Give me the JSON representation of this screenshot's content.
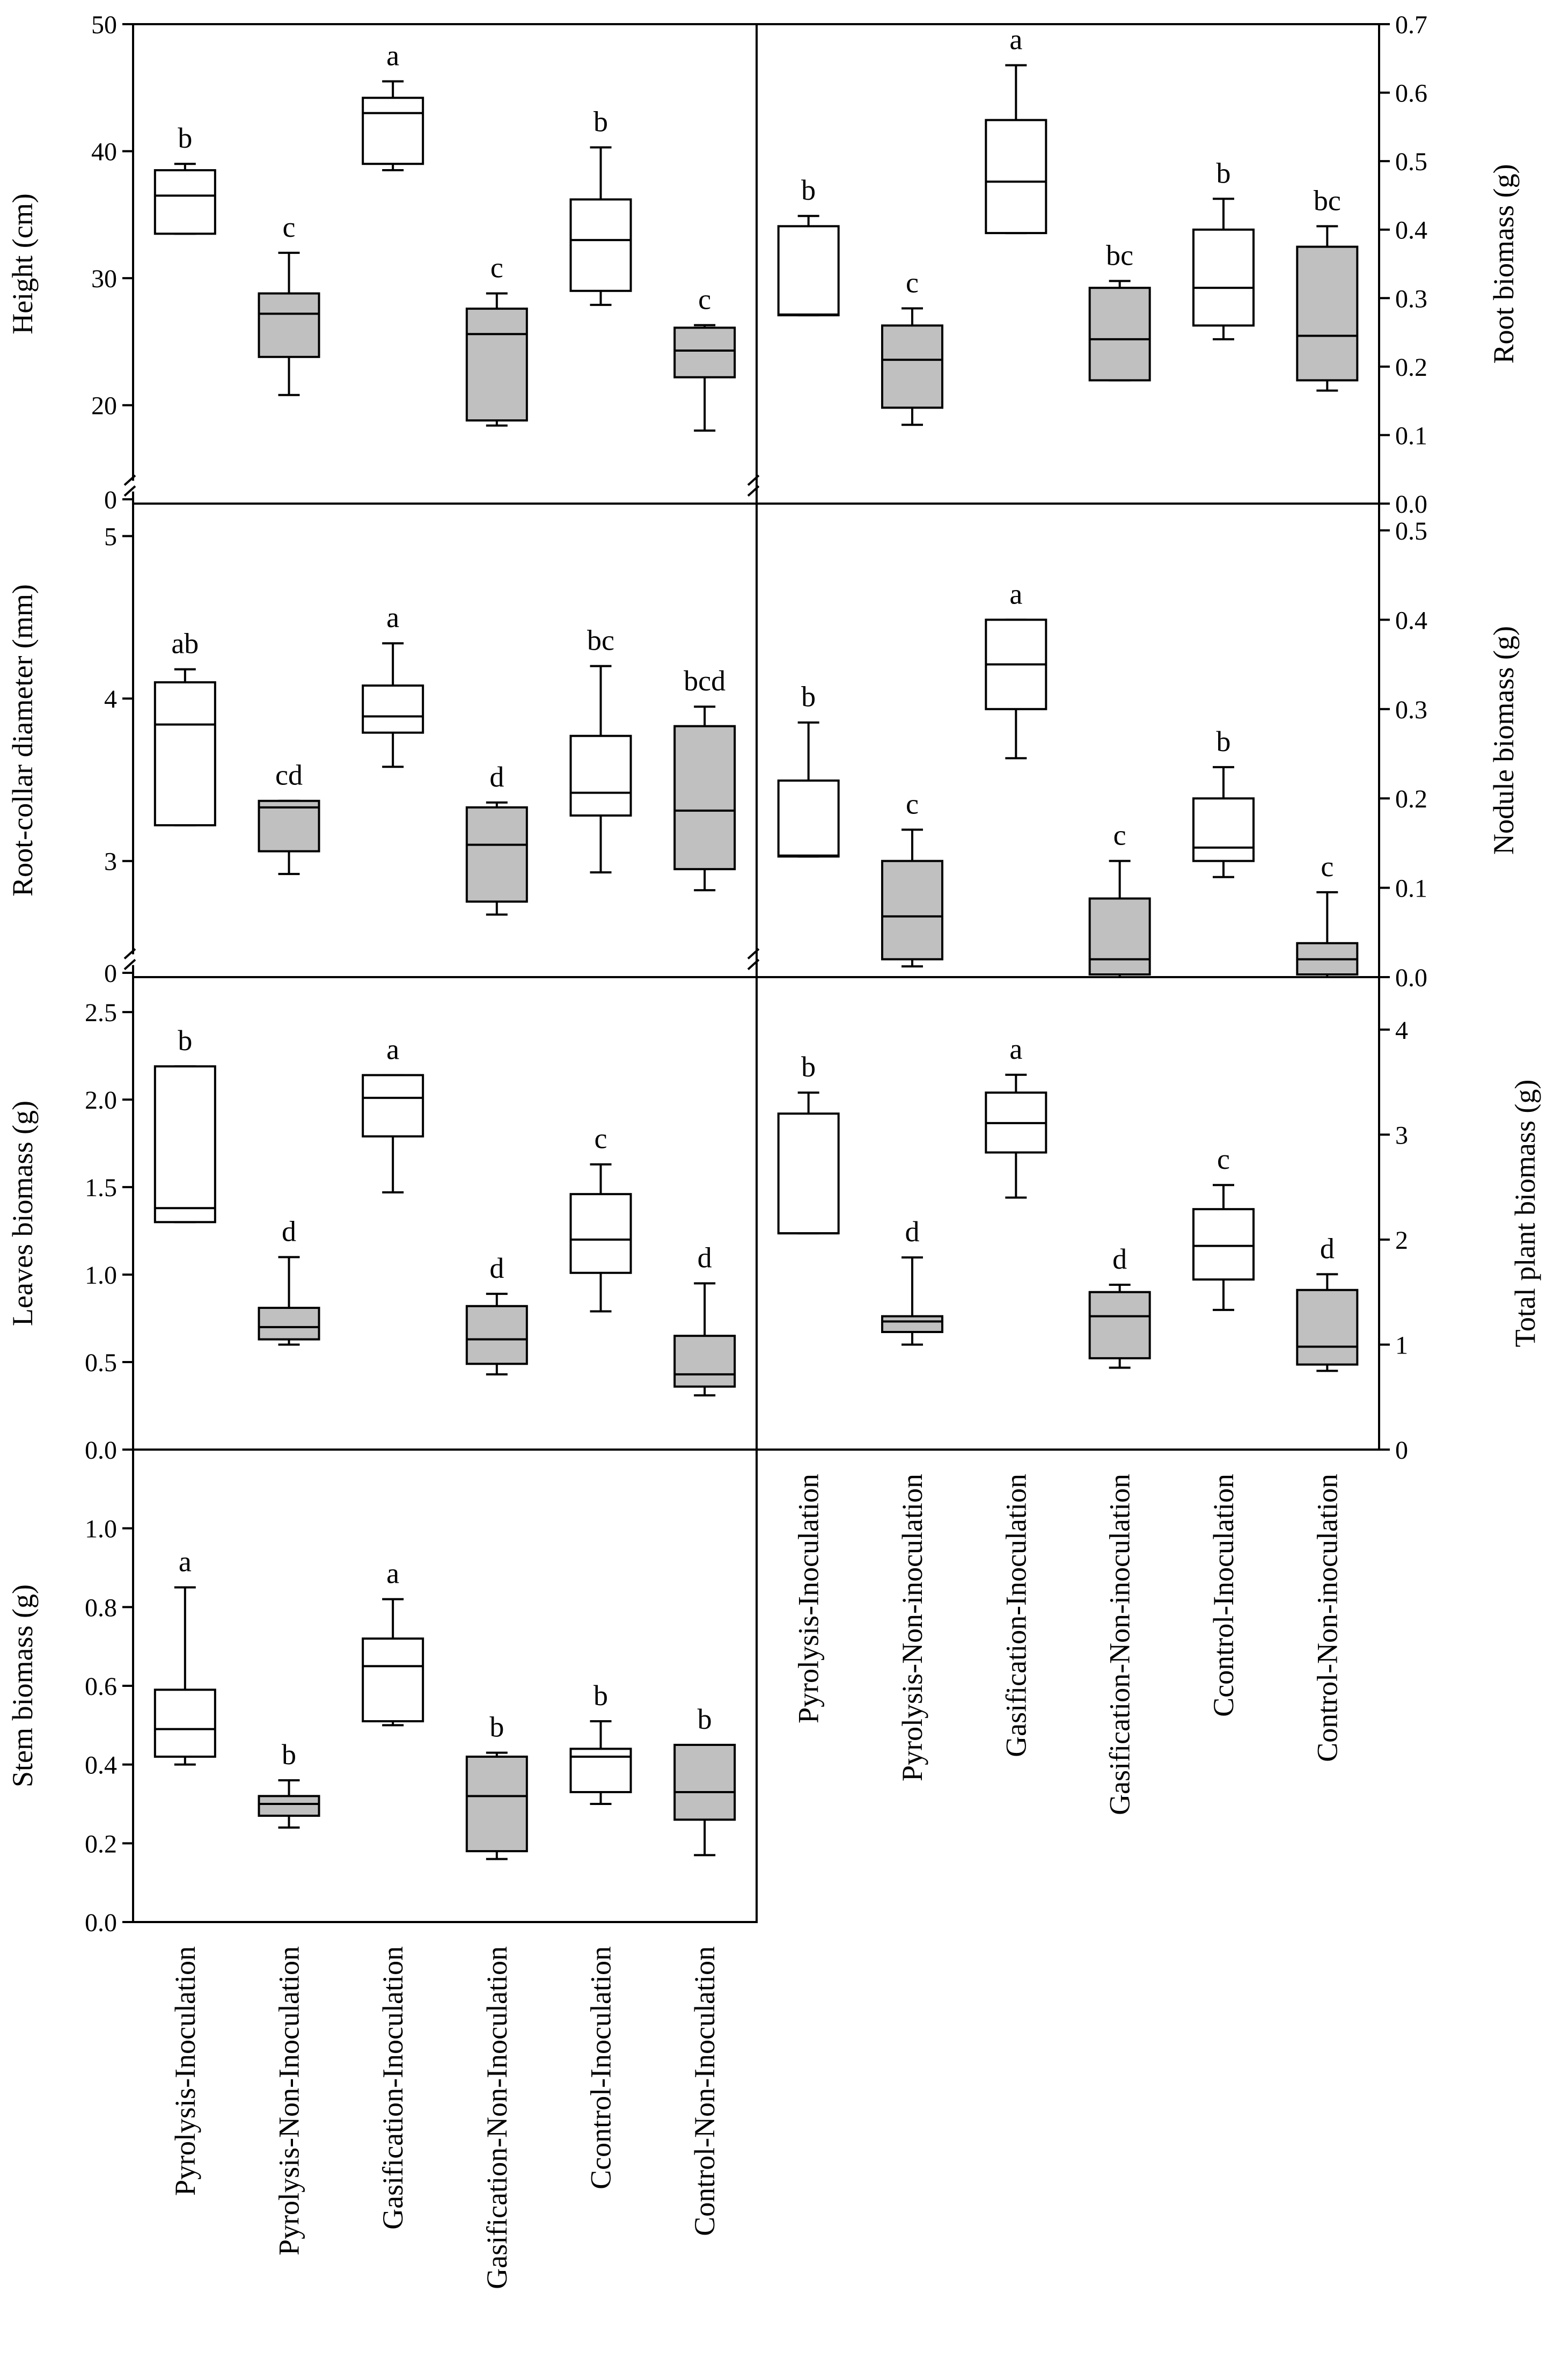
{
  "categories_left": [
    "Pyrolysis-Inoculation",
    "Pyrolysis-Non-Inoculation",
    "Gasification-Inoculation",
    "Gasification-Non-Inoculation",
    "Ccontrol-Inoculation",
    "Control-Non-Inoculation"
  ],
  "categories_right": [
    "Pyrolysis-Inoculation",
    "Pyrolysis-Non-inoculation",
    "Gasification-Inoculation",
    "Gasification-Non-inoculation",
    "Ccontrol-Inoculation",
    "Control-Non-inoculation"
  ],
  "colors": {
    "inoculated": "#ffffff",
    "non_inoculated": "#c0c0c0",
    "stroke": "#000000"
  },
  "chart_data": [
    {
      "id": "height",
      "type": "box",
      "ylabel": "Height (cm)",
      "ylim": [
        0,
        50
      ],
      "break": [
        0,
        15
      ],
      "ticks": [
        0,
        20,
        30,
        40,
        50
      ],
      "tick_labels": [
        "0",
        "20",
        "30",
        "40",
        "50"
      ],
      "boxes": [
        {
          "min": 33.5,
          "q1": 33.5,
          "median": 36.5,
          "q3": 38.5,
          "max": 39,
          "letter": "b"
        },
        {
          "min": 20.8,
          "q1": 23.8,
          "median": 27.2,
          "q3": 28.8,
          "max": 32,
          "letter": "c"
        },
        {
          "min": 38.5,
          "q1": 39,
          "median": 43,
          "q3": 44.2,
          "max": 45.5,
          "letter": "a"
        },
        {
          "min": 18.4,
          "q1": 18.8,
          "median": 25.6,
          "q3": 27.6,
          "max": 28.8,
          "letter": "c"
        },
        {
          "min": 27.9,
          "q1": 29,
          "median": 33,
          "q3": 36.2,
          "max": 40.3,
          "letter": "b"
        },
        {
          "min": 18,
          "q1": 22.2,
          "median": 24.3,
          "q3": 26.1,
          "max": 26.3,
          "letter": "c"
        }
      ]
    },
    {
      "id": "root-biomass",
      "type": "box",
      "ylabel": "Root biomass (g)",
      "ylim": [
        0,
        0.7
      ],
      "ticks": [
        0,
        0.1,
        0.2,
        0.3,
        0.4,
        0.5,
        0.6,
        0.7
      ],
      "tick_labels": [
        "0.0",
        "0.1",
        "0.2",
        "0.3",
        "0.4",
        "0.5",
        "0.6",
        "0.7"
      ],
      "boxes": [
        {
          "min": 0.275,
          "q1": 0.275,
          "median": 0.276,
          "q3": 0.405,
          "max": 0.42,
          "letter": "b"
        },
        {
          "min": 0.115,
          "q1": 0.14,
          "median": 0.21,
          "q3": 0.26,
          "max": 0.285,
          "letter": "c"
        },
        {
          "min": 0.395,
          "q1": 0.395,
          "median": 0.47,
          "q3": 0.56,
          "max": 0.64,
          "letter": "a"
        },
        {
          "min": 0.18,
          "q1": 0.18,
          "median": 0.24,
          "q3": 0.315,
          "max": 0.325,
          "letter": "bc"
        },
        {
          "min": 0.24,
          "q1": 0.26,
          "median": 0.315,
          "q3": 0.4,
          "max": 0.445,
          "letter": "b"
        },
        {
          "min": 0.165,
          "q1": 0.18,
          "median": 0.245,
          "q3": 0.375,
          "max": 0.405,
          "letter": "bc"
        }
      ]
    },
    {
      "id": "root-collar-diameter",
      "type": "box",
      "ylabel": "Root-collar diameter (mm)",
      "ylim": [
        0,
        5.2
      ],
      "break": [
        0,
        2.5
      ],
      "ticks": [
        0,
        3,
        4,
        5
      ],
      "tick_labels": [
        "0",
        "3",
        "4",
        "5"
      ],
      "boxes": [
        {
          "min": 3.22,
          "q1": 3.22,
          "median": 3.84,
          "q3": 4.1,
          "max": 4.18,
          "letter": "ab"
        },
        {
          "min": 2.92,
          "q1": 3.06,
          "median": 3.33,
          "q3": 3.37,
          "max": 3.37,
          "letter": "cd"
        },
        {
          "min": 3.58,
          "q1": 3.79,
          "median": 3.89,
          "q3": 4.08,
          "max": 4.34,
          "letter": "a"
        },
        {
          "min": 2.67,
          "q1": 2.75,
          "median": 3.1,
          "q3": 3.33,
          "max": 3.36,
          "letter": "d"
        },
        {
          "min": 2.93,
          "q1": 3.28,
          "median": 3.42,
          "q3": 3.77,
          "max": 4.2,
          "letter": "bc"
        },
        {
          "min": 2.82,
          "q1": 2.95,
          "median": 3.31,
          "q3": 3.83,
          "max": 3.95,
          "letter": "bcd"
        }
      ]
    },
    {
      "id": "nodule-biomass",
      "type": "box",
      "ylabel": "Nodule biomass (g)",
      "ylim": [
        0,
        0.53
      ],
      "ticks": [
        0,
        0.1,
        0.2,
        0.3,
        0.4,
        0.5
      ],
      "tick_labels": [
        "0.0",
        "0.1",
        "0.2",
        "0.3",
        "0.4",
        "0.5"
      ],
      "boxes": [
        {
          "min": 0.135,
          "q1": 0.135,
          "median": 0.136,
          "q3": 0.22,
          "max": 0.285,
          "letter": "b"
        },
        {
          "min": 0.012,
          "q1": 0.02,
          "median": 0.068,
          "q3": 0.13,
          "max": 0.165,
          "letter": "c"
        },
        {
          "min": 0.245,
          "q1": 0.3,
          "median": 0.35,
          "q3": 0.4,
          "max": 0.4,
          "letter": "a"
        },
        {
          "min": 0.0,
          "q1": 0.003,
          "median": 0.02,
          "q3": 0.088,
          "max": 0.13,
          "letter": "c"
        },
        {
          "min": 0.112,
          "q1": 0.13,
          "median": 0.145,
          "q3": 0.2,
          "max": 0.235,
          "letter": "b"
        },
        {
          "min": 0.0,
          "q1": 0.003,
          "median": 0.02,
          "q3": 0.038,
          "max": 0.095,
          "letter": "c"
        }
      ]
    },
    {
      "id": "leaves-biomass",
      "type": "box",
      "ylabel": "Leaves biomass (g)",
      "ylim": [
        0,
        2.7
      ],
      "ticks": [
        0,
        0.5,
        1.0,
        1.5,
        2.0,
        2.5
      ],
      "tick_labels": [
        "0.0",
        "0.5",
        "1.0",
        "1.5",
        "2.0",
        "2.5"
      ],
      "boxes": [
        {
          "min": 1.3,
          "q1": 1.3,
          "median": 1.38,
          "q3": 2.19,
          "max": 2.19,
          "letter": "b"
        },
        {
          "min": 0.6,
          "q1": 0.63,
          "median": 0.7,
          "q3": 0.81,
          "max": 1.1,
          "letter": "d"
        },
        {
          "min": 1.47,
          "q1": 1.79,
          "median": 2.01,
          "q3": 2.14,
          "max": 2.14,
          "letter": "a"
        },
        {
          "min": 0.43,
          "q1": 0.49,
          "median": 0.63,
          "q3": 0.82,
          "max": 0.89,
          "letter": "d"
        },
        {
          "min": 0.79,
          "q1": 1.01,
          "median": 1.2,
          "q3": 1.46,
          "max": 1.63,
          "letter": "c"
        },
        {
          "min": 0.31,
          "q1": 0.36,
          "median": 0.43,
          "q3": 0.65,
          "max": 0.95,
          "letter": "d"
        }
      ]
    },
    {
      "id": "total-plant-biomass",
      "type": "box",
      "ylabel": "Total plant biomass (g)",
      "ylim": [
        0,
        4.5
      ],
      "ticks": [
        0,
        1,
        2,
        3,
        4
      ],
      "tick_labels": [
        "0",
        "1",
        "2",
        "3",
        "4"
      ],
      "boxes": [
        {
          "min": 2.06,
          "q1": 2.06,
          "median": 2.06,
          "q3": 3.2,
          "max": 3.4,
          "letter": "b"
        },
        {
          "min": 1.0,
          "q1": 1.12,
          "median": 1.22,
          "q3": 1.27,
          "max": 1.83,
          "letter": "d"
        },
        {
          "min": 2.4,
          "q1": 2.83,
          "median": 3.11,
          "q3": 3.4,
          "max": 3.57,
          "letter": "a"
        },
        {
          "min": 0.78,
          "q1": 0.87,
          "median": 1.27,
          "q3": 1.5,
          "max": 1.57,
          "letter": "d"
        },
        {
          "min": 1.33,
          "q1": 1.62,
          "median": 1.94,
          "q3": 2.29,
          "max": 2.52,
          "letter": "c"
        },
        {
          "min": 0.75,
          "q1": 0.81,
          "median": 0.98,
          "q3": 1.52,
          "max": 1.67,
          "letter": "d"
        }
      ]
    },
    {
      "id": "stem-biomass",
      "type": "box",
      "ylabel": "Stem biomass (g)",
      "ylim": [
        0,
        1.2
      ],
      "ticks": [
        0,
        0.2,
        0.4,
        0.6,
        0.8,
        1.0
      ],
      "tick_labels": [
        "0.0",
        "0.2",
        "0.4",
        "0.6",
        "0.8",
        "1.0"
      ],
      "boxes": [
        {
          "min": 0.4,
          "q1": 0.42,
          "median": 0.49,
          "q3": 0.59,
          "max": 0.85,
          "letter": "a"
        },
        {
          "min": 0.24,
          "q1": 0.27,
          "median": 0.3,
          "q3": 0.32,
          "max": 0.36,
          "letter": "b"
        },
        {
          "min": 0.5,
          "q1": 0.51,
          "median": 0.65,
          "q3": 0.72,
          "max": 0.82,
          "letter": "a"
        },
        {
          "min": 0.16,
          "q1": 0.18,
          "median": 0.32,
          "q3": 0.42,
          "max": 0.43,
          "letter": "b"
        },
        {
          "min": 0.3,
          "q1": 0.33,
          "median": 0.42,
          "q3": 0.44,
          "max": 0.51,
          "letter": "b"
        },
        {
          "min": 0.17,
          "q1": 0.26,
          "median": 0.33,
          "q3": 0.45,
          "max": 0.45,
          "letter": "b"
        }
      ]
    }
  ]
}
